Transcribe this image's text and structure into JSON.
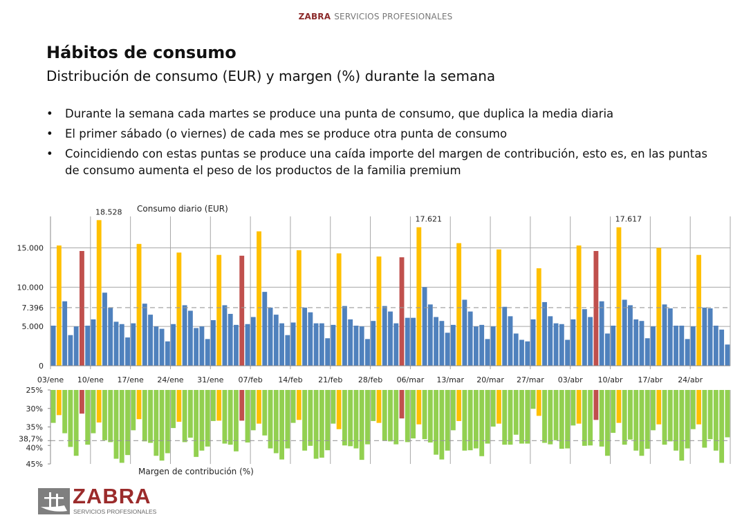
{
  "header": {
    "brand": "ZABRA",
    "tagline": "SERVICIOS PROFESIONALES"
  },
  "title": "Hábitos de consumo",
  "subtitle": "Distribución de consumo (EUR) y margen (%) durante la semana",
  "bullets": [
    "Durante la semana cada martes se produce una punta de consumo, que duplica la media diaria",
    "El primer sábado (o viernes) de cada mes se produce otra punta de consumo",
    "Coincidiendo con estas puntas se produce una caída importe del margen de contribución, esto es, en las puntas de consumo aumenta el peso de los productos de la familia premium"
  ],
  "logo": {
    "name": "ZABRA",
    "sub": "SERVICIOS PROFESIONALES"
  },
  "colors": {
    "normal": "#4f81bd",
    "tuesday_peak": "#ffc000",
    "first_saturday_peak": "#c0504d",
    "margin": "#92d050",
    "brand": "#9b2b2b"
  },
  "chart_data": [
    {
      "type": "bar",
      "title": "Consumo diario (EUR)",
      "ylim": [
        0,
        19000
      ],
      "yticks": [
        {
          "v": 0,
          "label": "0"
        },
        {
          "v": 5000,
          "label": "5.000"
        },
        {
          "v": 7396,
          "label": "7.396"
        },
        {
          "v": 10000,
          "label": "10.000"
        },
        {
          "v": 15000,
          "label": "15.000"
        }
      ],
      "mean": 7396,
      "grid": true,
      "xtick_labels": [
        "03/ene",
        "10/ene",
        "17/ene",
        "24/ene",
        "31/ene",
        "07/feb",
        "14/feb",
        "21/feb",
        "28/feb",
        "06/mar",
        "13/mar",
        "20/mar",
        "27/mar",
        "03/abr",
        "10/abr",
        "17/abr",
        "24/abr"
      ],
      "data_labels": [
        {
          "index": 8,
          "label": "18.528"
        },
        {
          "index": 64,
          "label": "17.621"
        },
        {
          "index": 99,
          "label": "17.617"
        }
      ],
      "values": [
        5100,
        15300,
        8200,
        3900,
        5000,
        14600,
        5100,
        5900,
        18528,
        9300,
        7400,
        5600,
        5300,
        3600,
        5400,
        15500,
        7900,
        6500,
        5000,
        4700,
        3100,
        5300,
        14400,
        7700,
        7000,
        4800,
        5000,
        3400,
        5800,
        14100,
        7700,
        6600,
        5200,
        14000,
        5300,
        6200,
        17100,
        9400,
        7400,
        6500,
        5400,
        3900,
        5500,
        14700,
        7400,
        6800,
        5400,
        5400,
        3500,
        5200,
        14300,
        7600,
        5900,
        5100,
        5000,
        3400,
        5700,
        13900,
        7600,
        6900,
        5400,
        13800,
        6100,
        6100,
        17621,
        10000,
        7800,
        6200,
        5700,
        4200,
        5200,
        15600,
        8400,
        6900,
        5000,
        5200,
        3400,
        5000,
        14800,
        7500,
        6300,
        4100,
        3300,
        3100,
        5900,
        12400,
        8100,
        6300,
        5400,
        5300,
        3300,
        5900,
        15300,
        7200,
        6200,
        14600,
        8200,
        4100,
        5100,
        17617,
        8400,
        7700,
        5900,
        5700,
        3500,
        5000,
        15000,
        7800,
        7300,
        5100,
        5100,
        3400,
        5000,
        14100,
        7400,
        7300,
        5100,
        4600,
        2700
      ],
      "first_saturday_peaks": [
        5,
        33,
        61,
        95
      ]
    },
    {
      "type": "bar",
      "title": "Margen de contribución (%)",
      "ylim": [
        25,
        45
      ],
      "inverted": true,
      "yticks": [
        {
          "v": 25,
          "label": "25%"
        },
        {
          "v": 30,
          "label": "30%"
        },
        {
          "v": 35,
          "label": "35%"
        },
        {
          "v": 38.7,
          "label": "38,7%"
        },
        {
          "v": 40,
          "label": "40%"
        },
        {
          "v": 45,
          "label": "45%"
        }
      ],
      "mean": 38.7,
      "values": [
        33.9,
        31.8,
        36.7,
        40.4,
        42.8,
        31.4,
        39.8,
        36.7,
        33.8,
        38.6,
        39.1,
        43.6,
        44.7,
        42.6,
        35.9,
        32.9,
        38.9,
        39.3,
        42.8,
        44.1,
        42.1,
        35.3,
        33.6,
        39.1,
        37.9,
        43.1,
        41.4,
        40.3,
        33.4,
        33.3,
        39.5,
        39.8,
        41.6,
        33.3,
        39.2,
        35.9,
        34.1,
        37.3,
        40.8,
        42.1,
        43.8,
        40.8,
        33.9,
        33.1,
        41.4,
        40.1,
        43.6,
        43.3,
        41.3,
        34.1,
        35.6,
        40.0,
        40.2,
        40.8,
        43.9,
        39.7,
        33.4,
        33.9,
        38.7,
        38.9,
        39.7,
        32.7,
        39.1,
        38.1,
        34.3,
        38.3,
        39.2,
        42.5,
        43.8,
        41.4,
        35.9,
        33.4,
        41.4,
        41.3,
        40.8,
        42.9,
        39.5,
        34.9,
        34.1,
        39.8,
        39.8,
        37.1,
        39.5,
        39.5,
        30.1,
        32.0,
        39.3,
        39.7,
        38.6,
        40.9,
        40.8,
        34.6,
        34.1,
        40.1,
        40.0,
        33.1,
        40.3,
        42.8,
        36.6,
        33.9,
        39.8,
        38.4,
        41.4,
        42.8,
        40.9,
        35.9,
        34.3,
        39.8,
        38.9,
        41.4,
        44.1,
        40.8,
        35.6,
        34.3,
        40.6,
        38.3,
        41.4,
        44.7,
        37.8
      ]
    }
  ]
}
